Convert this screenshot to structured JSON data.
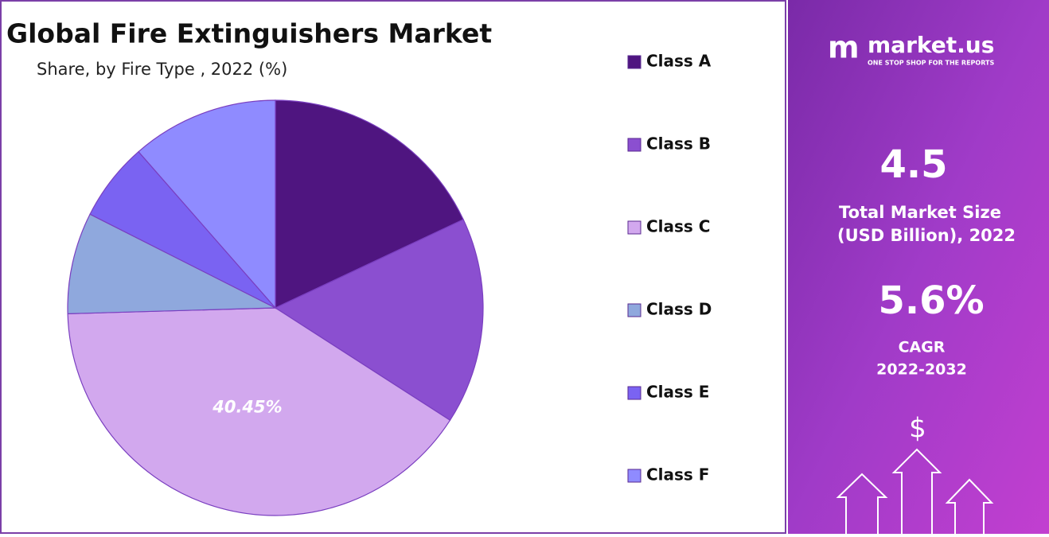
{
  "chart_data": {
    "type": "pie",
    "title": "Global Fire Extinguishers Market",
    "subtitle": "Share, by Fire Type , 2022 (%)",
    "categories": [
      "Class A",
      "Class B",
      "Class C",
      "Class D",
      "Class E",
      "Class F"
    ],
    "values": [
      18.0,
      16.1,
      40.45,
      7.9,
      6.1,
      11.45
    ],
    "value_labels": [
      null,
      null,
      "40.45%",
      null,
      null,
      null
    ],
    "colors": [
      "#4f1580",
      "#8b4fd0",
      "#d2a8ee",
      "#8fa8dd",
      "#7a63f2",
      "#8f8bff"
    ],
    "legend": "right"
  },
  "panel": {
    "brand": "market.us",
    "tagline": "ONE STOP SHOP FOR THE REPORTS",
    "market_size": "4.5",
    "market_size_label": [
      "Total Market Size",
      "(USD Billion), 2022"
    ],
    "cagr": "5.6%",
    "cagr_label": [
      "CAGR",
      "2022-2032"
    ],
    "icon": "$"
  }
}
